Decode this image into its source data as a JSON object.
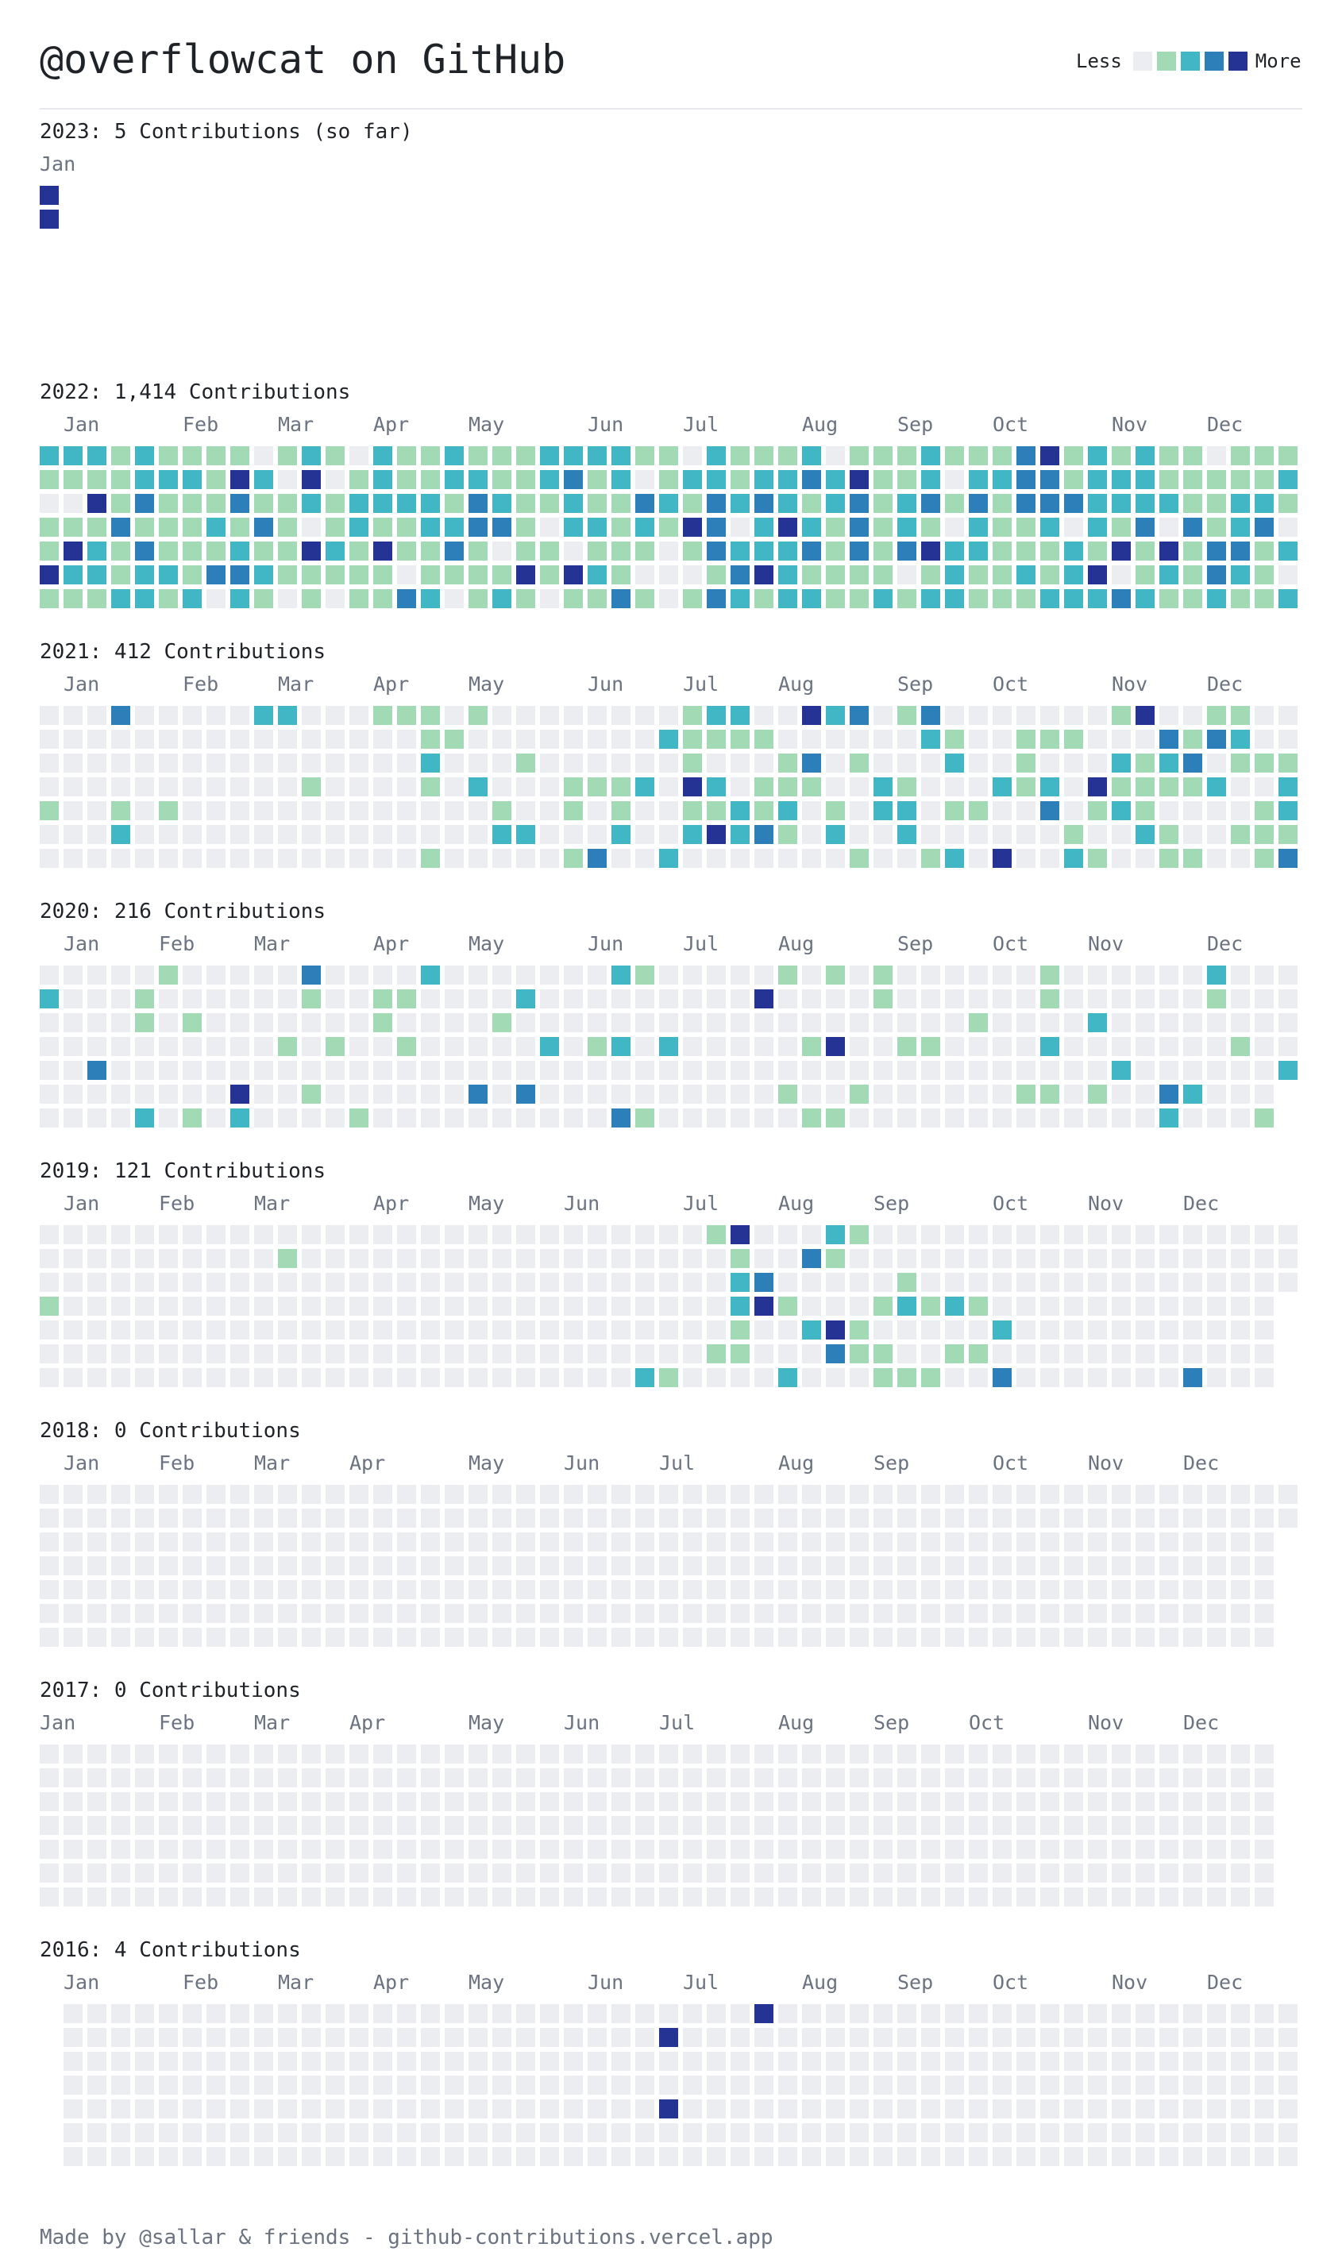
{
  "header": {
    "title": "@overflowcat on GitHub",
    "legend_less": "Less",
    "legend_more": "More",
    "legend_colors": [
      "#ebedf0",
      "#a1dab4",
      "#41b6c4",
      "#2c7fb8",
      "#253494"
    ]
  },
  "years": [
    {
      "title": "2023: 5 Contributions (so far)",
      "months": [
        "Jan"
      ],
      "month_weeks": [
        0
      ],
      "weeks": [
        [
          null,
          null,
          null,
          null,
          null,
          null,
          null
        ]
      ],
      "active": [
        [
          0,
          0,
          4
        ],
        [
          0,
          1,
          4
        ]
      ]
    },
    {
      "title": "2022: 1,414 Contributions",
      "months": [
        "Jan",
        "Feb",
        "Mar",
        "Apr",
        "May",
        "Jun",
        "Jul",
        "Aug",
        "Sep",
        "Oct",
        "Nov",
        "Dec"
      ],
      "month_weeks": [
        1,
        6,
        10,
        14,
        18,
        23,
        27,
        32,
        36,
        40,
        45,
        49
      ]
    },
    {
      "title": "2021: 412 Contributions",
      "months": [
        "Jan",
        "Feb",
        "Mar",
        "Apr",
        "May",
        "Jun",
        "Jul",
        "Aug",
        "Sep",
        "Oct",
        "Nov",
        "Dec"
      ],
      "month_weeks": [
        1,
        6,
        10,
        14,
        18,
        23,
        27,
        31,
        36,
        40,
        45,
        49
      ]
    },
    {
      "title": "2020: 216 Contributions",
      "months": [
        "Jan",
        "Feb",
        "Mar",
        "Apr",
        "May",
        "Jun",
        "Jul",
        "Aug",
        "Sep",
        "Oct",
        "Nov",
        "Dec"
      ],
      "month_weeks": [
        1,
        5,
        9,
        14,
        18,
        23,
        27,
        31,
        36,
        40,
        44,
        49
      ]
    },
    {
      "title": "2019: 121 Contributions",
      "months": [
        "Jan",
        "Feb",
        "Mar",
        "Apr",
        "May",
        "Jun",
        "Jul",
        "Aug",
        "Sep",
        "Oct",
        "Nov",
        "Dec"
      ],
      "month_weeks": [
        1,
        5,
        9,
        14,
        18,
        22,
        27,
        31,
        35,
        40,
        44,
        48
      ]
    },
    {
      "title": "2018: 0 Contributions",
      "months": [
        "Jan",
        "Feb",
        "Mar",
        "Apr",
        "May",
        "Jun",
        "Jul",
        "Aug",
        "Sep",
        "Oct",
        "Nov",
        "Dec"
      ],
      "month_weeks": [
        1,
        5,
        9,
        13,
        18,
        22,
        26,
        31,
        35,
        40,
        44,
        48
      ]
    },
    {
      "title": "2017: 0 Contributions",
      "months": [
        "Jan",
        "Feb",
        "Mar",
        "Apr",
        "May",
        "Jun",
        "Jul",
        "Aug",
        "Sep",
        "Oct",
        "Nov",
        "Dec"
      ],
      "month_weeks": [
        0,
        5,
        9,
        13,
        18,
        22,
        26,
        31,
        35,
        39,
        44,
        48
      ]
    },
    {
      "title": "2016: 4 Contributions",
      "months": [
        "Jan",
        "Feb",
        "Mar",
        "Apr",
        "May",
        "Jun",
        "Jul",
        "Aug",
        "Sep",
        "Oct",
        "Nov",
        "Dec"
      ],
      "month_weeks": [
        1,
        6,
        10,
        14,
        18,
        23,
        27,
        32,
        36,
        40,
        45,
        49
      ]
    }
  ],
  "footer": "Made by @sallar & friends - github-contributions.vercel.app"
}
